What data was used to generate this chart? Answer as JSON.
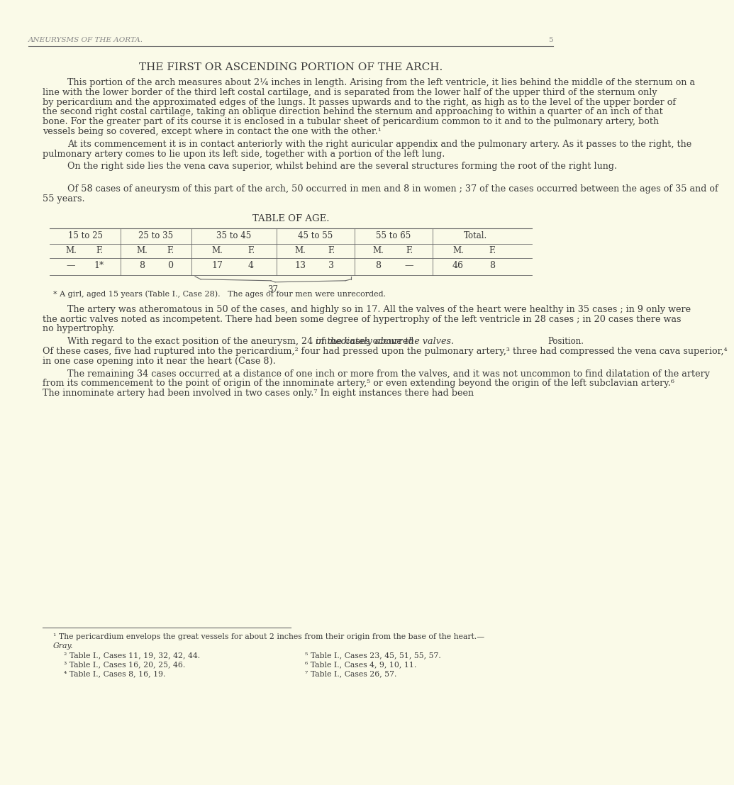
{
  "bg_color": "#FAFAE8",
  "header_italic": "ANEURYSMS OF THE AORTA.",
  "header_page": "5",
  "title": "THE FIRST OR ASCENDING PORTION OF THE ARCH.",
  "para1": "This portion of the arch measures about 2¼ inches in length.  Arising from the left ventricle, it lies behind the middle of the sternum on a line with the lower border of the third left costal cartilage, and is separated from the lower half of the upper third of the sternum only by pericardium and the approximated edges of the lungs.  It passes upwards and to the right, as high as to the level of the upper border of the second right costal cartilage, taking an oblique direction behind the sternum and approaching to within a quarter of an inch of that bone.  For the greater part of its course it is enclosed in a tubular sheet of pericardium common to it and to the pulmonary artery, both vessels being so covered, except where in contact the one with the other.¹",
  "para2": "At its commencement it is in contact anteriorly with the right auricular appendix and the pulmonary artery.  As it passes to the right, the pulmonary artery comes to lie upon its left side, together with a portion of the left lung.",
  "para3": "On the right side lies the vena cava superior, whilst behind are the several structures forming the root of the right lung.",
  "para4": "Of 58 cases of aneurysm of this part of the arch, 50 occurred in men and 8 in women ; 37 of the cases occurred between the ages of 35 and of 55 years.",
  "table_title": "TABLE OF AGE.",
  "table_header_row1": [
    "15 to 25",
    "25 to 35",
    "35 to 45",
    "45 to 55",
    "55 to 65",
    "Total."
  ],
  "table_header_row2": [
    "M.",
    "F.",
    "M.",
    "F.",
    "M.",
    "F.",
    "M",
    "F.",
    "M.",
    "F.",
    "M.",
    "F."
  ],
  "table_data_row": [
    "—",
    "1*",
    "8",
    "0",
    "17",
    "4",
    "13",
    "3",
    "8",
    "—",
    "46",
    "8"
  ],
  "table_brace_label": "37",
  "table_note": "* A girl, aged 15 years (Table I., Case 28).   The ages of four men were unrecorded.",
  "para5": "The artery was atheromatous in 50 of the cases, and highly so in 17.  All the valves of the heart were healthy in 35 cases ; in 9 only were the aortic valves noted as incompetent. There had been some degree of hypertrophy of the left ventricle in 28 cases ; in 20 cases there was no hypertrophy.",
  "para6_main": "With regard to the exact position of the aneurysm, 24 of the cases occurred ",
  "para6_italic": "immediately above the valves.",
  "para6_margin": "Position.",
  "para6_cont": "  Of these cases, five had ruptured into the pericardium,² four had pressed upon the pulmonary artery,³ three had compressed the vena cava superior,⁴ in one case opening into it near the heart (Case 8).",
  "para7": "The remaining 34 cases occurred at a distance of one inch or more from the valves, and it was not uncommon to find dilatation of the artery from its commencement to the point of origin of the innominate artery,⁵ or even extending beyond the origin of the left subclavian artery.⁶",
  "para7_italic": "The innominate artery had been involved in two cases only.",
  "para7_super": "⁷",
  "para7_cont": "  In eight instances there had been",
  "footnote_line": true,
  "footnote1": "¹ The pericardium envelops the great vessels for about 2 inches from their origin from the base of the heart.—",
  "footnote1_italic": "Gray.",
  "footnote2": "² Table I., Cases 11, 19, 32, 42, 44.",
  "footnote3": "³ Table I., Cases 16, 20, 25, 46.",
  "footnote4": "⁴ Table I., Cases 8, 16, 19.",
  "footnote5": "⁵ Table I., Cases 23, 45, 51, 55, 57.",
  "footnote6": "⁶ Table I., Cases 4, 9, 10, 11.",
  "footnote7": "⁷ Table I., Cases 26, 57.",
  "text_color": "#3a3a3a",
  "line_color": "#6a6a6a"
}
